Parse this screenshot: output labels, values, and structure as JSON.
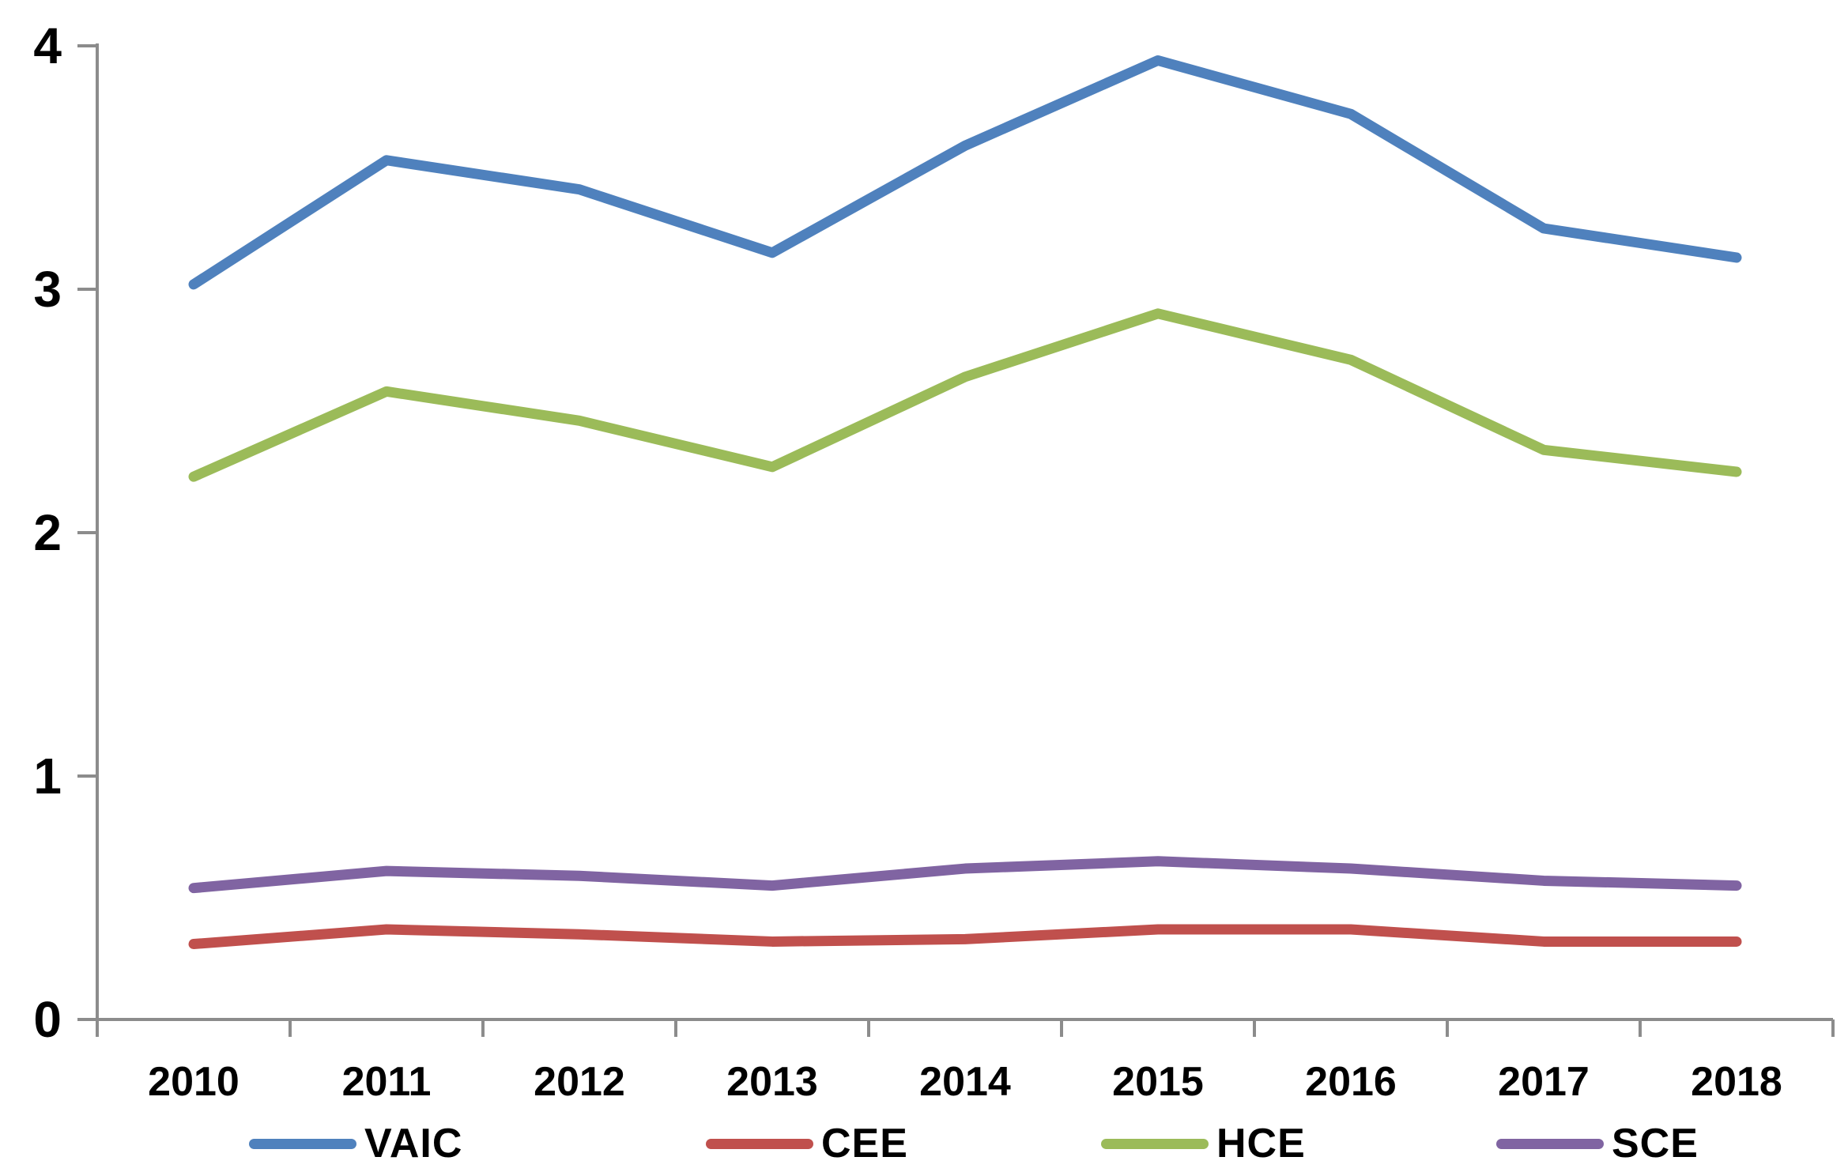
{
  "chart_data": {
    "type": "line",
    "title": "",
    "xlabel": "",
    "ylabel": "",
    "categories": [
      "2010",
      "2011",
      "2012",
      "2013",
      "2014",
      "2015",
      "2016",
      "2017",
      "2018"
    ],
    "series": [
      {
        "name": "VAIC",
        "color": "#4F81BD",
        "values": [
          3.02,
          3.53,
          3.41,
          3.15,
          3.59,
          3.94,
          3.72,
          3.25,
          3.13
        ]
      },
      {
        "name": "CEE",
        "color": "#C0504D",
        "values": [
          0.31,
          0.37,
          0.35,
          0.32,
          0.33,
          0.37,
          0.37,
          0.32,
          0.32
        ]
      },
      {
        "name": "HCE",
        "color": "#9BBB59",
        "values": [
          2.23,
          2.58,
          2.46,
          2.27,
          2.64,
          2.9,
          2.71,
          2.34,
          2.25
        ]
      },
      {
        "name": "SCE",
        "color": "#8064A2",
        "values": [
          0.54,
          0.61,
          0.59,
          0.55,
          0.62,
          0.65,
          0.62,
          0.57,
          0.55
        ]
      }
    ],
    "ylim": [
      0,
      4
    ],
    "yticks": [
      "0",
      "1",
      "2",
      "3",
      "4"
    ],
    "grid": false,
    "legend_position": "bottom",
    "axis_color": "#8C8C8C",
    "background": "#FFFFFF"
  }
}
